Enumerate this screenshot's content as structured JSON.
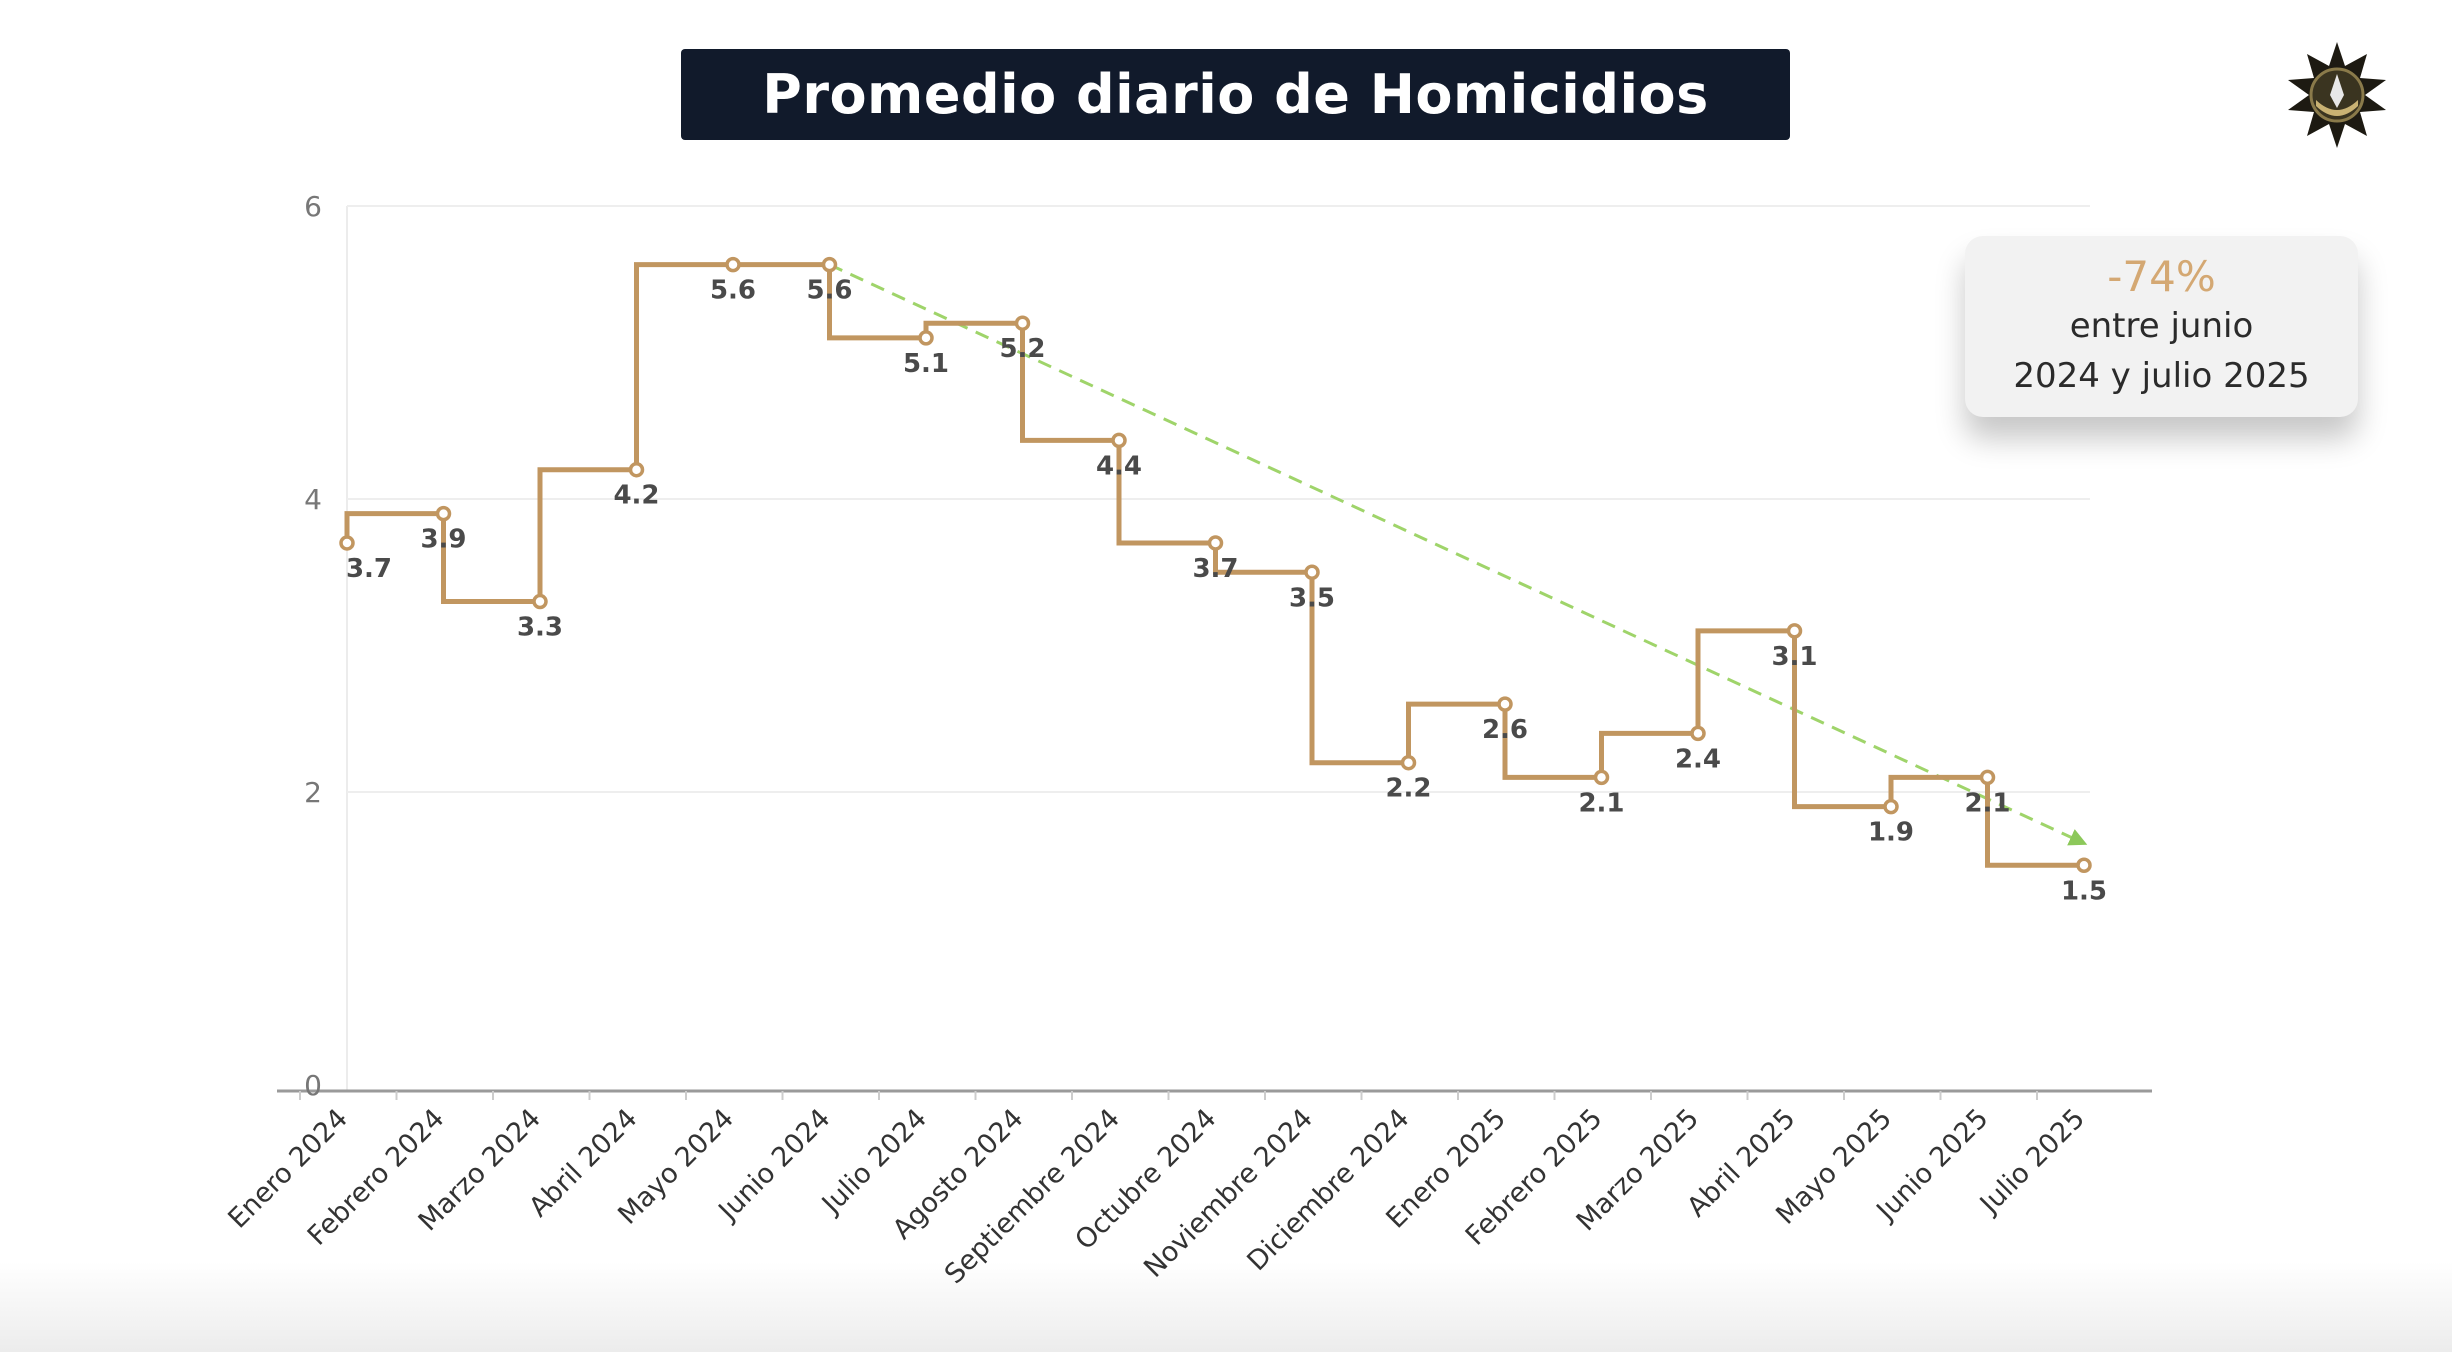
{
  "header": {
    "title": "Promedio diario de Homicidios",
    "logo_icon": "police-star-badge-icon"
  },
  "callout": {
    "value": "-74%",
    "line1": "entre junio",
    "line2": "2024 y julio 2025",
    "value_color": "#d4a873"
  },
  "chart_data": {
    "type": "line",
    "line_shape": "step",
    "title": "Promedio diario de Homicidios",
    "xlabel": "",
    "ylabel": "",
    "ylim": [
      0,
      6
    ],
    "yticks": [
      "0",
      "2",
      "4",
      "6"
    ],
    "grid": true,
    "categories": [
      "Enero 2024",
      "Febrero 2024",
      "Marzo 2024",
      "Abril 2024",
      "Mayo 2024",
      "Junio 2024",
      "Julio 2024",
      "Agosto 2024",
      "Septiembre 2024",
      "Octubre 2024",
      "Noviembre 2024",
      "Diciembre 2024",
      "Enero 2025",
      "Febrero 2025",
      "Marzo 2025",
      "Abril 2025",
      "Mayo 2025",
      "Junio 2025",
      "Julio 2025"
    ],
    "series": [
      {
        "name": "Promedio diario",
        "color": "#c19660",
        "values": [
          3.7,
          3.9,
          3.3,
          4.2,
          5.6,
          5.6,
          5.1,
          5.2,
          4.4,
          3.7,
          3.5,
          2.2,
          2.6,
          2.1,
          2.4,
          3.1,
          1.9,
          2.1,
          1.5
        ],
        "labels": [
          "3.7",
          "3.9",
          "3.3",
          "4.2",
          "5.6",
          "5.6",
          "5.1",
          "5.2",
          "4.4",
          "3.7",
          "3.5",
          "2.2",
          "2.6",
          "2.1",
          "2.4",
          "3.1",
          "1.9",
          "2.1",
          "1.5"
        ]
      }
    ],
    "trendline": {
      "color": "#9fd46a",
      "from": {
        "category": "Junio 2024",
        "value": 5.6
      },
      "to": {
        "category": "Julio 2025",
        "value": 1.65
      },
      "style": "dashed-arrow"
    }
  }
}
